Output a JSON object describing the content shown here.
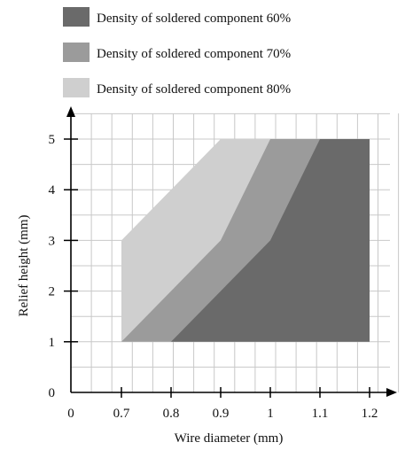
{
  "chart_data": {
    "type": "area",
    "title": "",
    "xlabel": "Wire diameter (mm)",
    "ylabel": "Relief height (mm)",
    "x_ticks": [
      "0",
      "0.7",
      "0.8",
      "0.9",
      "1",
      "1.1",
      "1.2"
    ],
    "y_ticks": [
      "0",
      "1",
      "2",
      "3",
      "4",
      "5"
    ],
    "ylim": [
      0,
      5
    ],
    "grid": true,
    "legend_position": "top",
    "series": [
      {
        "name": "Density of soldered component 80%",
        "color": "#cfcfcf",
        "polygon": [
          [
            0.7,
            1
          ],
          [
            0.7,
            3
          ],
          [
            0.9,
            5
          ],
          [
            1.2,
            5
          ],
          [
            1.2,
            1
          ]
        ]
      },
      {
        "name": "Density of soldered component 70%",
        "color": "#9b9b9b",
        "polygon": [
          [
            0.7,
            1
          ],
          [
            0.9,
            3
          ],
          [
            1.0,
            5
          ],
          [
            1.2,
            5
          ],
          [
            1.2,
            1
          ]
        ]
      },
      {
        "name": "Density of soldered component 60%",
        "color": "#6a6a6a",
        "polygon": [
          [
            0.8,
            1
          ],
          [
            1.0,
            3
          ],
          [
            1.1,
            5
          ],
          [
            1.2,
            5
          ],
          [
            1.2,
            1
          ]
        ]
      }
    ]
  }
}
